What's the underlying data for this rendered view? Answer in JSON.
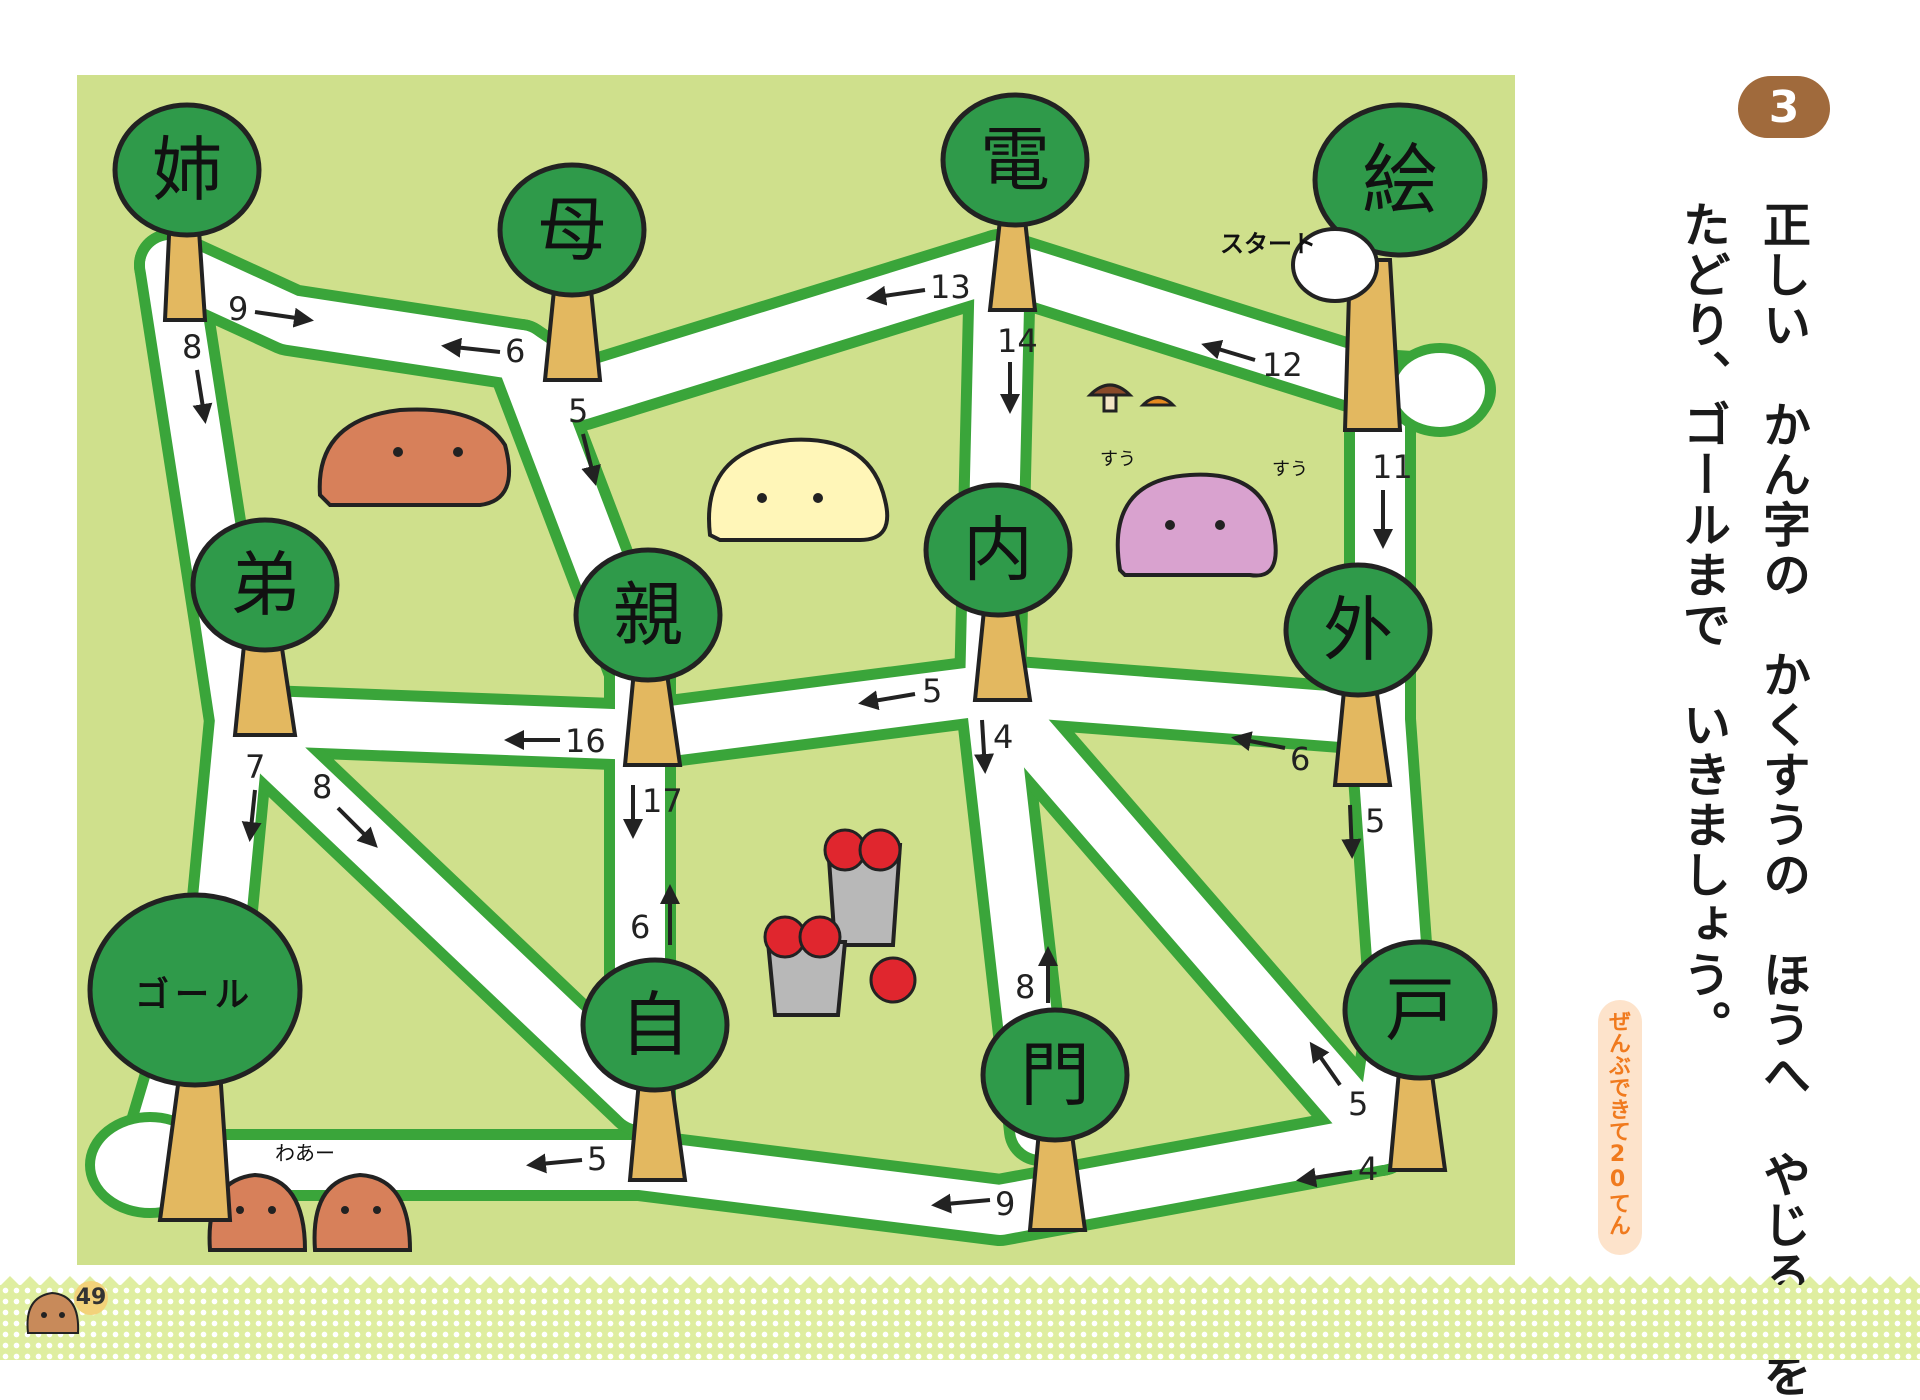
{
  "question_number": "3",
  "instructions": [
    "正しい　かん字の　かくすうの　ほうへ　やじるしを",
    "たどり、ゴールまで　いきましょう。"
  ],
  "score": "ぜんぶできて20てん",
  "page_number": "49",
  "start_label": "スタート",
  "goal_label": "ゴール",
  "sleep_sound": "すう",
  "wah_label": "わあー",
  "trees": {
    "ane": "姉",
    "haha": "母",
    "den": "電",
    "e": "絵",
    "otouto": "弟",
    "oya": "親",
    "uchi": "内",
    "soto": "外",
    "ji": "自",
    "mon": "門",
    "to": "戸"
  },
  "arrows": {
    "a9": "9",
    "a8": "8",
    "a6": "6",
    "a5": "5",
    "a13": "13",
    "a14": "14",
    "a12": "12",
    "a11": "11",
    "a5b": "5",
    "a16": "16",
    "a7": "7",
    "a8b": "8",
    "a17": "17",
    "a4": "4",
    "a6b": "6",
    "a5c": "5",
    "a6c": "6",
    "a8c": "8",
    "a5d": "5",
    "a5e": "5",
    "a9b": "9",
    "a4b": "4"
  },
  "colors": {
    "paper": "#ffffff",
    "grass": "#cfe08c",
    "road_edge": "#3aa53a",
    "tree_crown": "#2f9a4a",
    "trunk": "#e3b860",
    "capybara": "#d7805a"
  }
}
